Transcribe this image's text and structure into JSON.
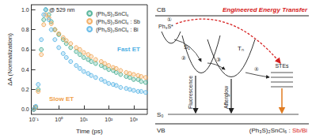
{
  "chart_data": {
    "type": "scatter",
    "xlabel": "Time (ps)",
    "ylabel": "ΔA (Normalization)",
    "annotations": {
      "wavelength": "@ 529 nm",
      "fast": "Fast ET",
      "slow": "Slow ET"
    },
    "log": "x",
    "legend": "upper right",
    "marker": "circle",
    "xlim": [
      0.08,
      3500
    ],
    "ylim": [
      -0.05,
      1.05
    ],
    "xticks": [
      {
        "value": 0.1,
        "label": "10⁻¹"
      },
      {
        "value": 1,
        "label": "10⁰"
      },
      {
        "value": 10,
        "label": "10¹"
      },
      {
        "value": 100,
        "label": "10²"
      },
      {
        "value": 1000,
        "label": "10³"
      }
    ],
    "yticks": [
      {
        "value": 0,
        "label": "0.0"
      },
      0.2,
      0.4,
      0.6,
      0.8,
      {
        "value": 1,
        "label": "1.0"
      }
    ],
    "x": [
      0.1,
      0.12,
      0.15,
      0.2,
      0.25,
      0.3,
      0.4,
      0.5,
      0.7,
      1,
      1.5,
      2,
      3,
      5,
      7,
      10,
      15,
      20,
      30,
      50,
      70,
      100,
      150,
      200,
      300,
      500,
      700,
      1000,
      1500,
      2000,
      3000
    ],
    "series": [
      {
        "name": "(Ph₃S)₂SnCl₆",
        "color": "#3aa88a",
        "values": [
          0,
          0.02,
          0.2,
          0.6,
          0.9,
          1.0,
          0.95,
          0.88,
          0.8,
          0.75,
          0.7,
          0.66,
          0.62,
          0.58,
          0.55,
          0.52,
          0.5,
          0.48,
          0.46,
          0.44,
          0.42,
          0.4,
          0.39,
          0.37,
          0.35,
          0.33,
          0.32,
          0.3,
          0.3,
          0.28,
          0.27
        ]
      },
      {
        "name": "(Ph₃S)₂SnCl₆ : Sb",
        "color": "#f0a04b",
        "values": [
          0,
          0.02,
          0.18,
          0.55,
          0.85,
          0.95,
          0.92,
          0.86,
          0.8,
          0.76,
          0.72,
          0.69,
          0.66,
          0.62,
          0.6,
          0.57,
          0.55,
          0.53,
          0.5,
          0.48,
          0.46,
          0.44,
          0.42,
          0.41,
          0.39,
          0.37,
          0.36,
          0.35,
          0.34,
          0.33,
          0.32
        ]
      },
      {
        "name": "(Ph₃S)₂SnCl₆ : Bi",
        "color": "#4fb0e3",
        "values": [
          0,
          0.03,
          0.25,
          0.7,
          0.95,
          1.0,
          0.9,
          0.8,
          0.7,
          0.62,
          0.56,
          0.52,
          0.48,
          0.44,
          0.41,
          0.38,
          0.36,
          0.34,
          0.32,
          0.3,
          0.28,
          0.26,
          0.25,
          0.24,
          0.22,
          0.21,
          0.2,
          0.19,
          0.18,
          0.18,
          0.17
        ]
      }
    ]
  },
  "diagram": {
    "bands": {
      "top": "CB",
      "bottom": "VB"
    },
    "title": "Engineered Energy Transfer",
    "states": {
      "excited": "Ph₃S*",
      "singlet": "S₁",
      "triplet": "Tₙ",
      "traps": "STEs",
      "ground": "S₀"
    },
    "transitions": {
      "singlet": "Fluorescence",
      "triplet": "Afterglow"
    },
    "steps": [
      "①",
      "②",
      "③",
      "④"
    ],
    "material": "(Ph₃S)₂SnCl₆ : ",
    "dopants": "Sb/Bi"
  }
}
